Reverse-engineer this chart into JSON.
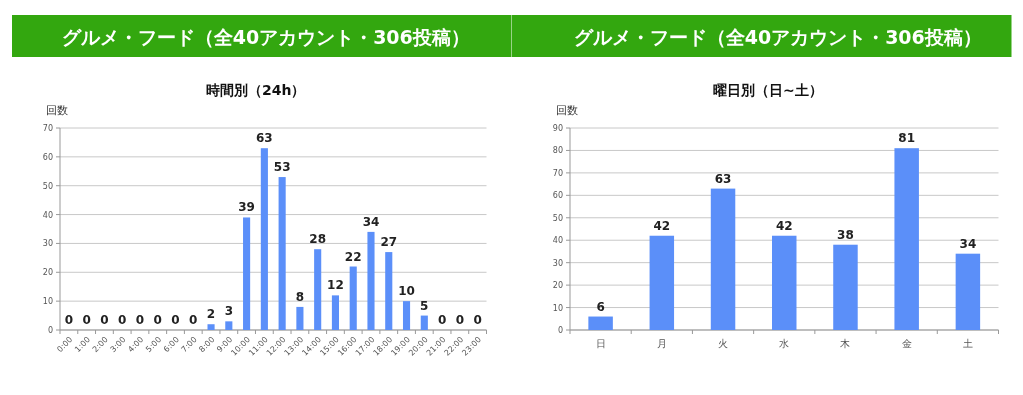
{
  "chart_data": [
    {
      "type": "bar",
      "title": "グルメ・フード（全40アカウント・306投稿）",
      "subtitle": "時間別（24h）",
      "ylabel": "回数",
      "categories": [
        "0:00",
        "1:00",
        "2:00",
        "3:00",
        "4:00",
        "5:00",
        "6:00",
        "7:00",
        "8:00",
        "9:00",
        "10:00",
        "11:00",
        "12:00",
        "13:00",
        "14:00",
        "15:00",
        "16:00",
        "17:00",
        "18:00",
        "19:00",
        "20:00",
        "21:00",
        "22:00",
        "23:00"
      ],
      "values": [
        0,
        0,
        0,
        0,
        0,
        0,
        0,
        0,
        2,
        3,
        39,
        63,
        53,
        8,
        28,
        12,
        22,
        34,
        27,
        10,
        5,
        0,
        0,
        0
      ],
      "color": "#5b8ff9",
      "ylim": [
        0,
        70
      ],
      "yticks": [
        0,
        10,
        20,
        30,
        40,
        50,
        60,
        70
      ],
      "grid": "y",
      "data_labels": true
    },
    {
      "type": "bar",
      "title": "グルメ・フード（全40アカウント・306投稿）",
      "subtitle": "曜日別（日~土）",
      "ylabel": "回数",
      "categories": [
        "日",
        "月",
        "火",
        "水",
        "木",
        "金",
        "土"
      ],
      "values": [
        6,
        42,
        63,
        42,
        38,
        81,
        34
      ],
      "color": "#5b8ff9",
      "ylim": [
        0,
        90
      ],
      "yticks": [
        0,
        10,
        20,
        30,
        40,
        50,
        60,
        70,
        80,
        90
      ],
      "grid": "y",
      "data_labels": true
    }
  ]
}
